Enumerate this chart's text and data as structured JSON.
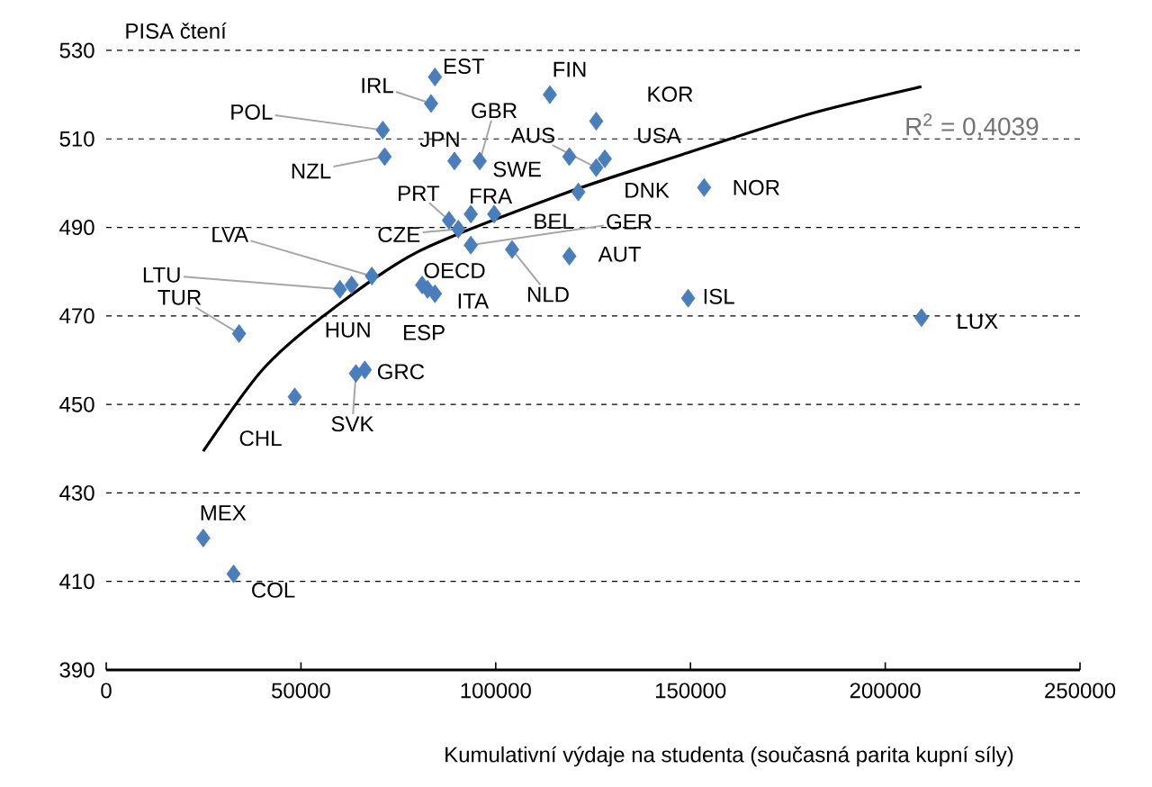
{
  "chart_data": {
    "type": "scatter",
    "ylabel": "PISA čtení",
    "xlabel": "Kumulativní výdaje na studenta (současná parita kupní síly)",
    "xlim": [
      0,
      250000
    ],
    "ylim": [
      390,
      530
    ],
    "xticks": [
      0,
      50000,
      100000,
      150000,
      200000,
      250000
    ],
    "yticks": [
      390,
      410,
      430,
      450,
      470,
      490,
      510,
      530
    ],
    "grid": "y",
    "marker": "diamond",
    "series": [
      {
        "color": "#4a7ebb",
        "x": [
          34100,
          60000,
          63000,
          68200,
          90400,
          71000,
          71500,
          83400,
          84400,
          89400,
          95900,
          113900,
          125800,
          125800,
          128000,
          118900,
          121200,
          153500,
          88000,
          93600,
          99600,
          93600,
          81100,
          84400,
          82500,
          104200,
          118900,
          149400,
          209300,
          66400,
          64100,
          48400,
          24900,
          32700
        ],
        "values": [
          466,
          476,
          477,
          479,
          489.6,
          512,
          506,
          518,
          524,
          505,
          505,
          520,
          514,
          503.5,
          505.5,
          506,
          498,
          499,
          491.6,
          493,
          493,
          486,
          477,
          475,
          476,
          485,
          483.5,
          474,
          469.6,
          457.8,
          457,
          451.7,
          419.8,
          411.7
        ]
      },
      {
        "type": "line",
        "marker": "none",
        "color": "#000000",
        "x": [
          24900,
          40000,
          55800,
          80000,
          117100,
          148000,
          180000,
          209300
        ],
        "values": [
          439.4,
          457.7,
          470,
          484.5,
          497.5,
          506.5,
          515.5,
          521.8
        ]
      }
    ],
    "annotations": [
      {
        "text": "TUR",
        "x": 34100,
        "y": 466
      },
      {
        "text": "LTU",
        "x": 60000,
        "y": 476
      },
      {
        "text": "HUN",
        "x": 63000,
        "y": 477
      },
      {
        "text": "LVA",
        "x": 68200,
        "y": 479
      },
      {
        "text": "CZE",
        "x": 90400,
        "y": 489.6
      },
      {
        "text": "POL",
        "x": 71000,
        "y": 512
      },
      {
        "text": "NZL",
        "x": 71500,
        "y": 506
      },
      {
        "text": "IRL",
        "x": 83400,
        "y": 518
      },
      {
        "text": "EST",
        "x": 84400,
        "y": 524
      },
      {
        "text": "JPN",
        "x": 89400,
        "y": 505
      },
      {
        "text": "GBR",
        "x": 95900,
        "y": 505
      },
      {
        "text": "FIN",
        "x": 113900,
        "y": 520
      },
      {
        "text": "KOR",
        "x": 125800,
        "y": 514
      },
      {
        "text": "AUS",
        "x": 125800,
        "y": 503.5
      },
      {
        "text": "USA",
        "x": 128000,
        "y": 505.5
      },
      {
        "text": "SWE",
        "x": 118900,
        "y": 506
      },
      {
        "text": "DNK",
        "x": 121200,
        "y": 498
      },
      {
        "text": "NOR",
        "x": 153500,
        "y": 499
      },
      {
        "text": "PRT",
        "x": 88000,
        "y": 491.6
      },
      {
        "text": "FRA",
        "x": 93600,
        "y": 493
      },
      {
        "text": "BEL",
        "x": 99600,
        "y": 493
      },
      {
        "text": "GER",
        "x": 93600,
        "y": 486
      },
      {
        "text": "OECD",
        "x": 81100,
        "y": 477
      },
      {
        "text": "ITA",
        "x": 84400,
        "y": 475
      },
      {
        "text": "ESP",
        "x": 82500,
        "y": 476
      },
      {
        "text": "NLD",
        "x": 104200,
        "y": 485
      },
      {
        "text": "AUT",
        "x": 118900,
        "y": 483.5
      },
      {
        "text": "ISL",
        "x": 149400,
        "y": 474
      },
      {
        "text": "LUX",
        "x": 209300,
        "y": 469.6
      },
      {
        "text": "GRC",
        "x": 66400,
        "y": 457.8
      },
      {
        "text": "SVK",
        "x": 64100,
        "y": 457
      },
      {
        "text": "CHL",
        "x": 48400,
        "y": 451.7
      },
      {
        "text": "MEX",
        "x": 24900,
        "y": 419.8
      },
      {
        "text": "COL",
        "x": 32700,
        "y": 411.7
      },
      "R$^{2}$ = 0,4039"
    ]
  }
}
